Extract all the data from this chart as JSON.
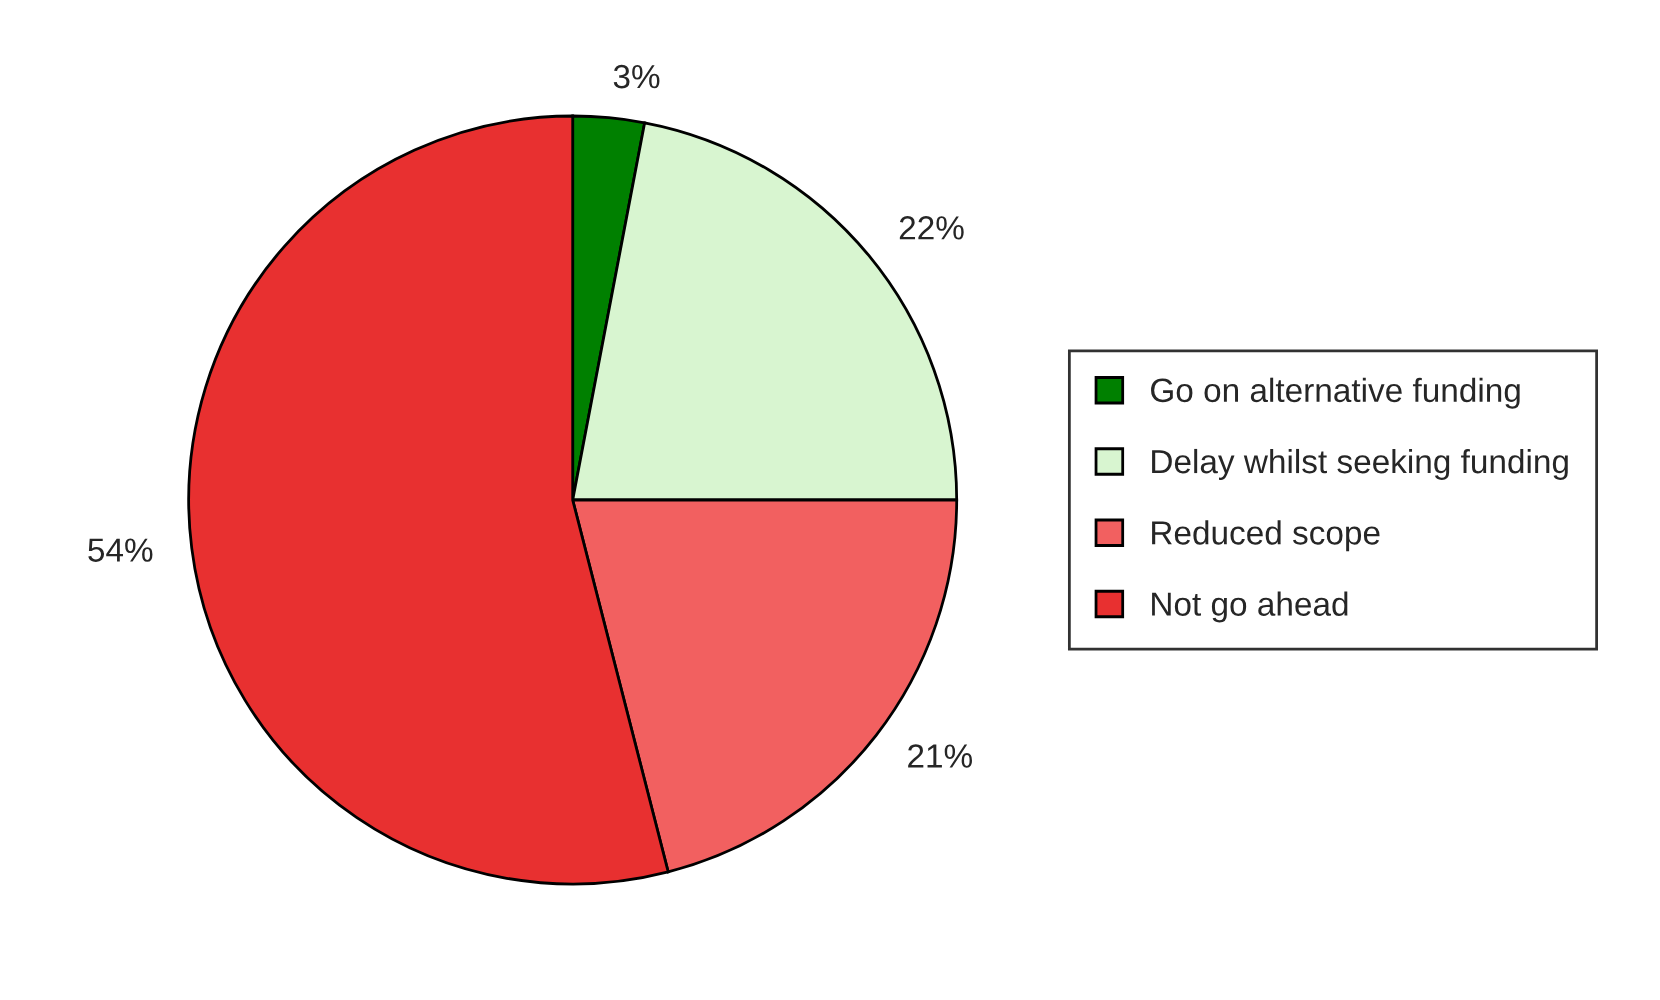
{
  "chart_data": {
    "type": "pie",
    "categories": [
      "Go on alternative funding",
      "Delay whilst seeking funding",
      "Reduced scope",
      "Not go ahead"
    ],
    "values": [
      3,
      22,
      21,
      54
    ],
    "colors": [
      "#008000",
      "#d8f5d0",
      "#f26060",
      "#e83030"
    ],
    "value_labels": [
      "3%",
      "22%",
      "21%",
      "54%"
    ],
    "legend": "right"
  }
}
